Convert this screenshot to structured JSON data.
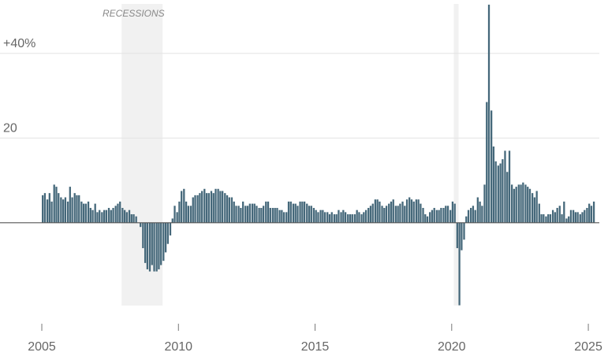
{
  "chart_data": {
    "type": "bar",
    "annotation": "RECESSIONS",
    "recessions": [
      [
        2007.92,
        2009.42
      ],
      [
        2020.08,
        2020.25
      ]
    ],
    "color": "#45687a",
    "xlim": [
      2003.47,
      2025.72
    ],
    "xticks": [
      2005,
      2010,
      2015,
      2020,
      2025
    ],
    "ylim": [
      -21.8,
      52.6
    ],
    "yticks": [
      {
        "value": 20,
        "label": "20"
      },
      {
        "value": 40,
        "label": "+40%"
      }
    ],
    "grid": true,
    "x": [
      2005,
      2005.08,
      2005.17,
      2005.25,
      2005.33,
      2005.42,
      2005.5,
      2005.58,
      2005.67,
      2005.75,
      2005.83,
      2005.92,
      2006,
      2006.08,
      2006.17,
      2006.25,
      2006.33,
      2006.42,
      2006.5,
      2006.58,
      2006.67,
      2006.75,
      2006.83,
      2006.92,
      2007,
      2007.08,
      2007.17,
      2007.25,
      2007.33,
      2007.42,
      2007.5,
      2007.58,
      2007.67,
      2007.75,
      2007.83,
      2007.92,
      2008,
      2008.08,
      2008.17,
      2008.25,
      2008.33,
      2008.42,
      2008.5,
      2008.58,
      2008.67,
      2008.75,
      2008.83,
      2008.92,
      2009,
      2009.08,
      2009.17,
      2009.25,
      2009.33,
      2009.42,
      2009.5,
      2009.58,
      2009.67,
      2009.75,
      2009.83,
      2009.92,
      2010,
      2010.08,
      2010.17,
      2010.25,
      2010.33,
      2010.42,
      2010.5,
      2010.58,
      2010.67,
      2010.75,
      2010.83,
      2010.92,
      2011,
      2011.08,
      2011.17,
      2011.25,
      2011.33,
      2011.42,
      2011.5,
      2011.58,
      2011.67,
      2011.75,
      2011.83,
      2011.92,
      2012,
      2012.08,
      2012.17,
      2012.25,
      2012.33,
      2012.42,
      2012.5,
      2012.58,
      2012.67,
      2012.75,
      2012.83,
      2012.92,
      2013,
      2013.08,
      2013.17,
      2013.25,
      2013.33,
      2013.42,
      2013.5,
      2013.58,
      2013.67,
      2013.75,
      2013.83,
      2013.92,
      2014,
      2014.08,
      2014.17,
      2014.25,
      2014.33,
      2014.42,
      2014.5,
      2014.58,
      2014.67,
      2014.75,
      2014.83,
      2014.92,
      2015,
      2015.08,
      2015.17,
      2015.25,
      2015.33,
      2015.42,
      2015.5,
      2015.58,
      2015.67,
      2015.75,
      2015.83,
      2015.92,
      2016,
      2016.08,
      2016.17,
      2016.25,
      2016.33,
      2016.42,
      2016.5,
      2016.58,
      2016.67,
      2016.75,
      2016.83,
      2016.92,
      2017,
      2017.08,
      2017.17,
      2017.25,
      2017.33,
      2017.42,
      2017.5,
      2017.58,
      2017.67,
      2017.75,
      2017.83,
      2017.92,
      2018,
      2018.08,
      2018.17,
      2018.25,
      2018.33,
      2018.42,
      2018.5,
      2018.58,
      2018.67,
      2018.75,
      2018.83,
      2018.92,
      2019,
      2019.08,
      2019.17,
      2019.25,
      2019.33,
      2019.42,
      2019.5,
      2019.58,
      2019.67,
      2019.75,
      2019.83,
      2019.92,
      2020,
      2020.08,
      2020.17,
      2020.25,
      2020.33,
      2020.42,
      2020.5,
      2020.58,
      2020.67,
      2020.75,
      2020.83,
      2020.92,
      2021,
      2021.08,
      2021.17,
      2021.25,
      2021.33,
      2021.42,
      2021.5,
      2021.58,
      2021.67,
      2021.75,
      2021.83,
      2021.92,
      2022,
      2022.08,
      2022.17,
      2022.25,
      2022.33,
      2022.42,
      2022.5,
      2022.58,
      2022.67,
      2022.75,
      2022.83,
      2022.92,
      2023,
      2023.08,
      2023.17,
      2023.25,
      2023.33,
      2023.42,
      2023.5,
      2023.58,
      2023.67,
      2023.75,
      2023.83,
      2023.92,
      2024,
      2024.08,
      2024.17,
      2024.25,
      2024.33,
      2024.42,
      2024.5,
      2024.58,
      2024.67,
      2024.75,
      2024.83,
      2024.92,
      2025,
      2025.08,
      2025.17
    ],
    "values": [
      6.5,
      7,
      5.5,
      7,
      5,
      9,
      8.5,
      7,
      6,
      5.5,
      6,
      5,
      8.5,
      6,
      7,
      6.5,
      6.5,
      5,
      4.5,
      4.5,
      5,
      3.5,
      3,
      4.5,
      2.5,
      3,
      2.5,
      3,
      3,
      3.5,
      3,
      3.5,
      4,
      4.5,
      5,
      3.5,
      3,
      2.5,
      3,
      2,
      2,
      1.5,
      0,
      -1,
      -6,
      -9.5,
      -11,
      -11.5,
      -10,
      -11.5,
      -11.5,
      -11,
      -10,
      -9,
      -7,
      -5,
      -3,
      1,
      4,
      2.5,
      5,
      7.5,
      8,
      5,
      4,
      4,
      6,
      6.5,
      6.5,
      7,
      7.5,
      8,
      7,
      7,
      7.5,
      7,
      8,
      8,
      7.5,
      7.5,
      7,
      6.5,
      6,
      6,
      5,
      4,
      4,
      3.5,
      5,
      4,
      4,
      4.5,
      4.5,
      4.5,
      4,
      3.5,
      3.5,
      4,
      5,
      5,
      3.5,
      3.5,
      3.5,
      3.5,
      3,
      3,
      2.5,
      2.5,
      5,
      5,
      4.5,
      4.5,
      4,
      5,
      5,
      5,
      4.5,
      4,
      4,
      3.5,
      3,
      2.5,
      3,
      3,
      2.5,
      2.5,
      2,
      2.5,
      2,
      2,
      3,
      2.5,
      3,
      2.5,
      2,
      2,
      2,
      2,
      3,
      2.5,
      2,
      2.5,
      3,
      3.5,
      4,
      4.5,
      5.5,
      5.5,
      5,
      4,
      3.5,
      4,
      4.5,
      5,
      5.5,
      4,
      4,
      4.5,
      5,
      4,
      5.5,
      6,
      5.5,
      5,
      5.5,
      5.5,
      4.5,
      3.5,
      2,
      1.5,
      2.5,
      3,
      3.5,
      3,
      3,
      3.5,
      3.5,
      4,
      4,
      3,
      5,
      4.5,
      -6,
      -19.5,
      -6.5,
      -4,
      1.5,
      3,
      3.5,
      4,
      3,
      6,
      5,
      4,
      9,
      28.5,
      51.5,
      26.5,
      18,
      14.5,
      13.5,
      14,
      15,
      17,
      12,
      17,
      9,
      8,
      8.5,
      9,
      9,
      9.5,
      9,
      8.5,
      8,
      7,
      6,
      7.5,
      4.5,
      2,
      2,
      1.5,
      2,
      2,
      3,
      2.5,
      3.5,
      4,
      2,
      5,
      1,
      1.5,
      3,
      3,
      2.5,
      2.5,
      2,
      2.5,
      3,
      3.5,
      4.5,
      4,
      5
    ]
  }
}
